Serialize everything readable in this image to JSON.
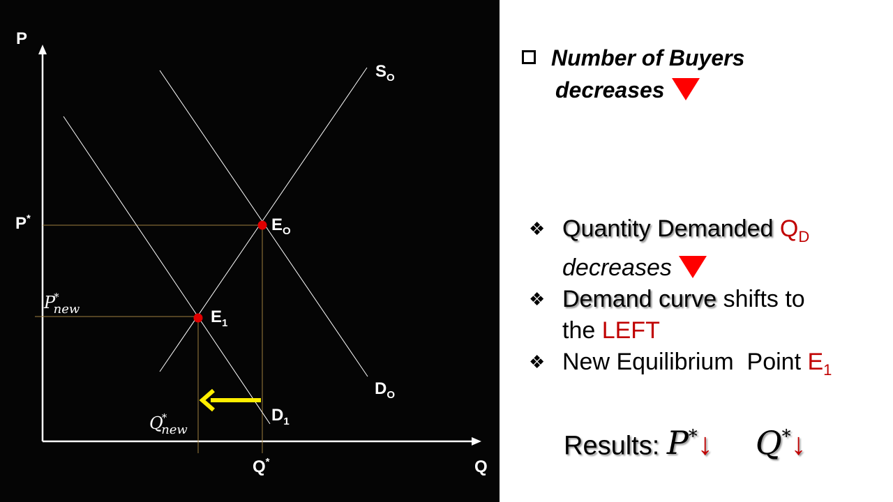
{
  "graph": {
    "axis_p": "P",
    "axis_q": "Q",
    "p_star": "P",
    "p_star_sup": "*",
    "q_star": "Q",
    "q_star_sup": "*",
    "p_new_base": "P",
    "p_new_sup": "*",
    "p_new_sub": "new",
    "q_new_base": "Q",
    "q_new_sup": "*",
    "q_new_sub": "new",
    "s0_label": "S",
    "s0_sub": "O",
    "d0_label": "D",
    "d0_sub": "O",
    "d1_label": "D",
    "d1_sub": "1",
    "e0_label": "E",
    "e0_sub": "O",
    "e1_label": "E",
    "e1_sub": "1"
  },
  "header": {
    "line1": "Number of Buyers",
    "line2": "decreases"
  },
  "bullets": {
    "item1_a": "Quantity Demanded",
    "item1_q": "Q",
    "item1_q_sub": "D",
    "item1_b": "decreases",
    "item2_a": "Demand curve",
    "item2_b": "shifts to",
    "item2_c": "the",
    "item2_d": "LEFT",
    "item3_a": "New Equilibrium  Point",
    "item3_e": "E",
    "item3_e_sub": "1"
  },
  "results": {
    "label": "Results:",
    "p": "P",
    "p_sup": "*",
    "q": "Q",
    "q_sup": "*",
    "arrow": "↓"
  },
  "colors": {
    "background_left": "#050505",
    "point": "#e00000",
    "guide": "#a08040",
    "shift_arrow": "#ffee00",
    "accent_red": "#c00000"
  }
}
